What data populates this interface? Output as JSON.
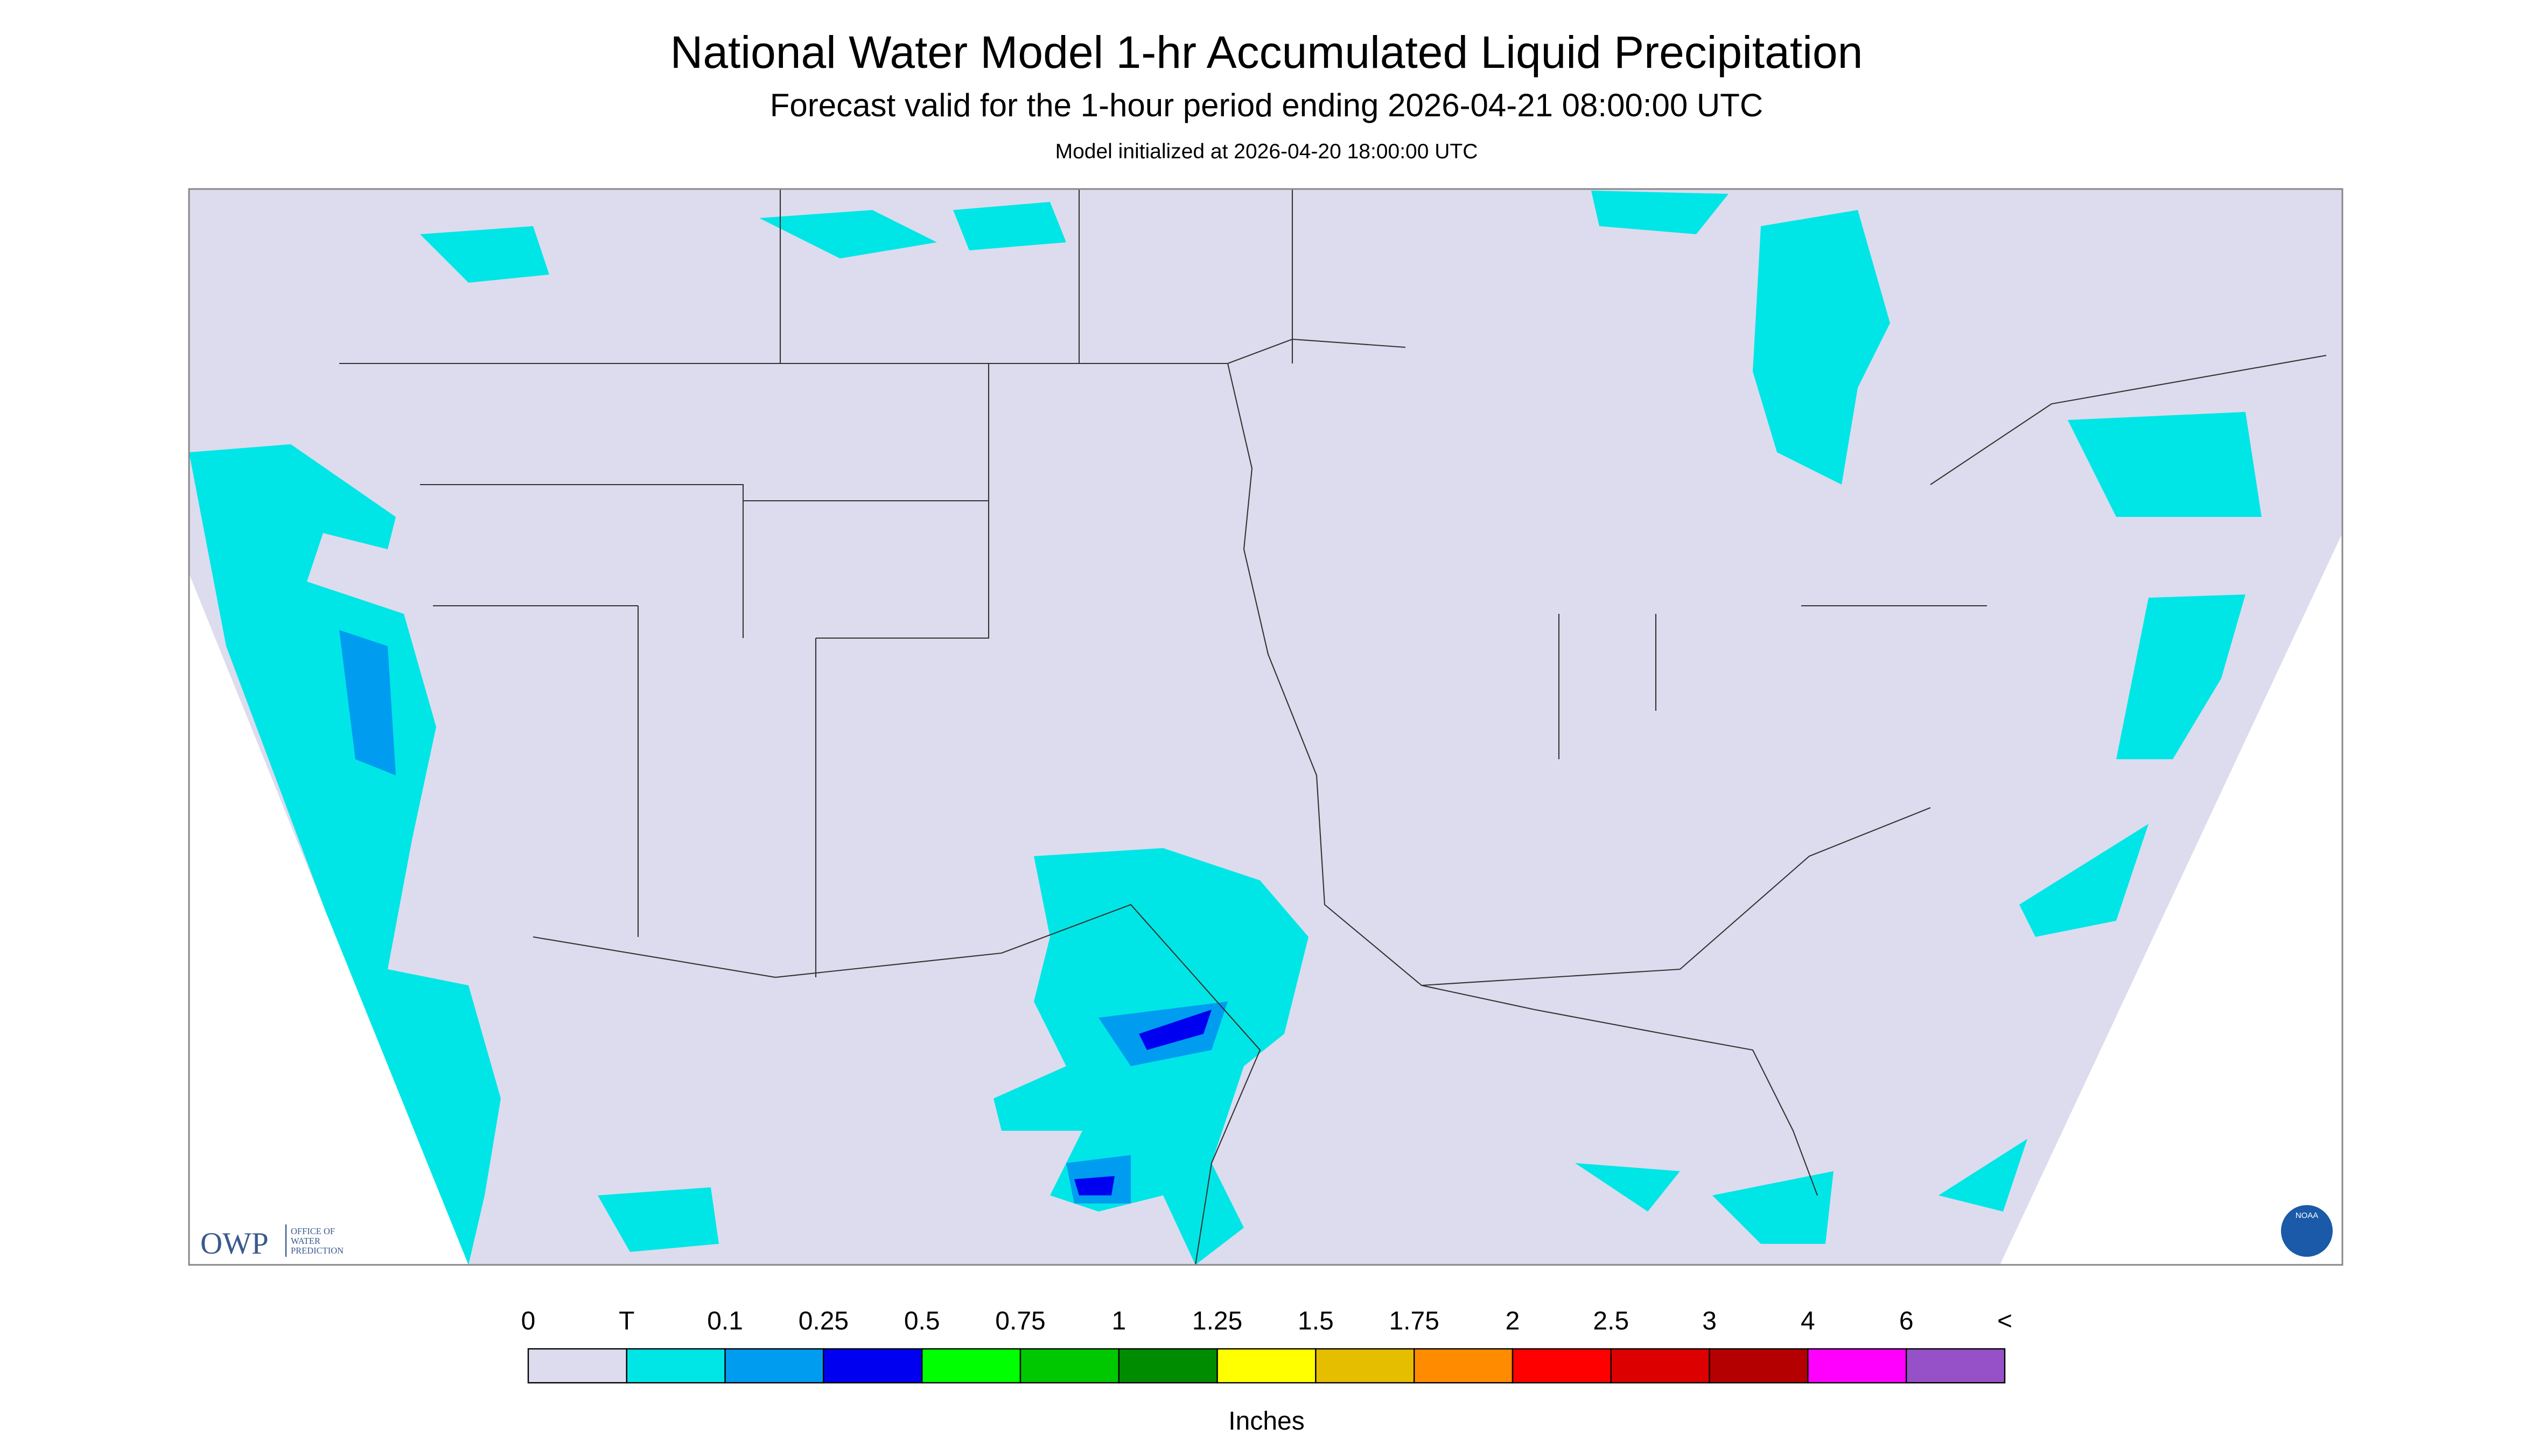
{
  "header": {
    "title": "National Water Model 1-hr Accumulated Liquid Precipitation",
    "subtitle": "Forecast valid for the 1-hour period ending 2026-04-21 08:00:00 UTC",
    "initialized": "Model initialized at 2026-04-20 18:00:00 UTC"
  },
  "logo": {
    "owp": "OWP",
    "owp_name": [
      "OFFICE OF",
      "WATER",
      "PREDICTION"
    ],
    "noaa": "NOAA"
  },
  "legend": {
    "labels": [
      "0",
      "T",
      "0.1",
      "0.25",
      "0.5",
      "0.75",
      "1",
      "1.25",
      "1.5",
      "1.75",
      "2",
      "2.5",
      "3",
      "4",
      "6",
      "<"
    ],
    "colors": [
      "#dcdcee",
      "#00e6e6",
      "#009cf0",
      "#0000f0",
      "#00ff00",
      "#00c800",
      "#008c00",
      "#ffff00",
      "#e6be00",
      "#ff8c00",
      "#ff0000",
      "#dc0000",
      "#b40000",
      "#ff00ff",
      "#9650c8"
    ],
    "units": "Inches"
  }
}
